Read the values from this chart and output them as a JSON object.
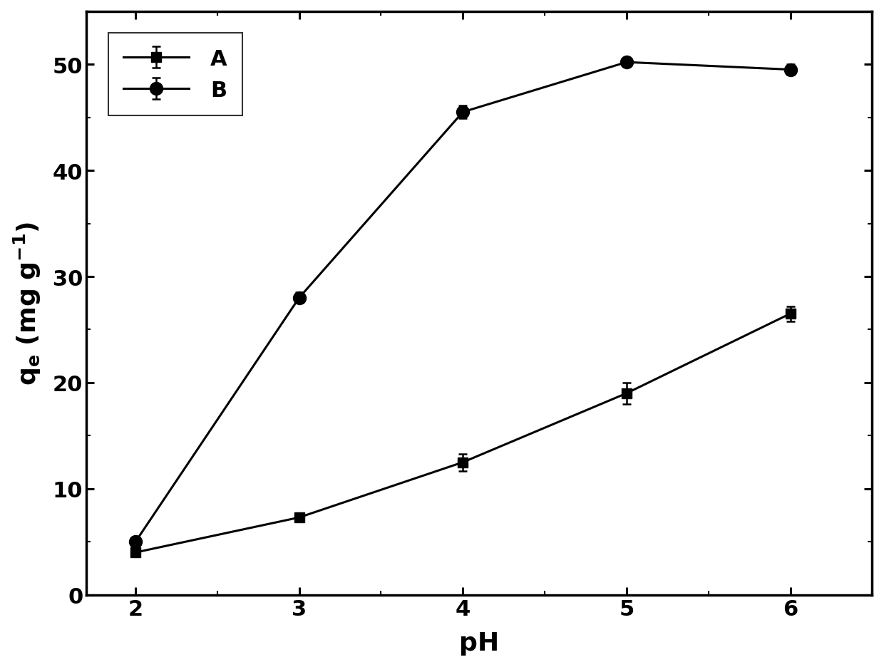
{
  "series_A": {
    "x": [
      2,
      3,
      4,
      5,
      6
    ],
    "y": [
      4.0,
      7.3,
      12.5,
      19.0,
      26.5
    ],
    "yerr": [
      0.3,
      0.4,
      0.8,
      1.0,
      0.7
    ],
    "label": "A",
    "marker": "s",
    "color": "black",
    "markersize": 10,
    "linewidth": 2.2
  },
  "series_B": {
    "x": [
      2,
      3,
      4,
      5,
      6
    ],
    "y": [
      5.0,
      28.0,
      45.5,
      50.2,
      49.5
    ],
    "yerr": [
      0.3,
      0.5,
      0.6,
      0.4,
      0.5
    ],
    "label": "B",
    "marker": "o",
    "color": "black",
    "markersize": 13,
    "linewidth": 2.2
  },
  "xlabel": "pH",
  "ylabel_line1": "q",
  "ylabel_line2": "(mg g",
  "xlim": [
    1.7,
    6.5
  ],
  "ylim": [
    0,
    55
  ],
  "xticks": [
    2,
    3,
    4,
    5,
    6
  ],
  "yticks": [
    0,
    10,
    20,
    30,
    40,
    50
  ],
  "tick_fontsize": 22,
  "label_fontsize": 26,
  "legend_fontsize": 22,
  "legend_loc": "upper left",
  "background_color": "#ffffff",
  "spine_linewidth": 2.5
}
